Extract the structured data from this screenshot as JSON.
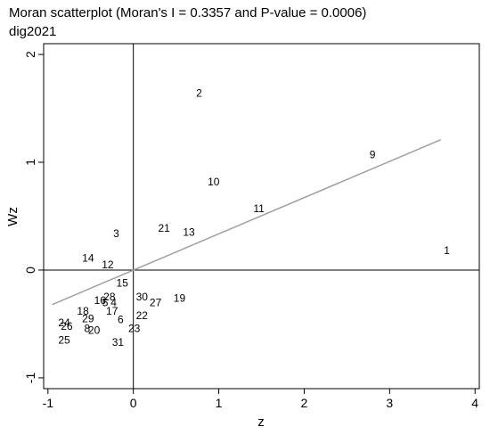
{
  "chart_data": {
    "type": "scatter",
    "title": "Moran scatterplot (Moran's I = 0.3357 and P-value = 0.0006)",
    "subtitle": "dig2021",
    "xlabel": "z",
    "ylabel": "Wz",
    "xlim": [
      -1.05,
      4.05
    ],
    "ylim": [
      -1.1,
      2.1
    ],
    "x_ticks": [
      -1,
      0,
      1,
      2,
      3,
      4
    ],
    "y_ticks": [
      -1,
      0,
      1,
      2
    ],
    "grid": false,
    "reference_lines": {
      "x": 0,
      "y": 0
    },
    "fit_line": {
      "x0": -0.95,
      "y0": -0.32,
      "x1": 3.6,
      "y1": 1.21,
      "color": "#a0a0a0"
    },
    "marker": "label",
    "points": [
      {
        "label": "1",
        "x": 3.67,
        "y": 0.18
      },
      {
        "label": "2",
        "x": 0.77,
        "y": 1.64
      },
      {
        "label": "3",
        "x": -0.2,
        "y": 0.34
      },
      {
        "label": "4",
        "x": -0.23,
        "y": -0.3
      },
      {
        "label": "5",
        "x": -0.33,
        "y": -0.3
      },
      {
        "label": "6",
        "x": -0.15,
        "y": -0.46
      },
      {
        "label": "8",
        "x": -0.54,
        "y": -0.54
      },
      {
        "label": "9",
        "x": 2.8,
        "y": 1.07
      },
      {
        "label": "10",
        "x": 0.94,
        "y": 0.82
      },
      {
        "label": "11",
        "x": 1.47,
        "y": 0.57
      },
      {
        "label": "12",
        "x": -0.3,
        "y": 0.05
      },
      {
        "label": "13",
        "x": 0.65,
        "y": 0.35
      },
      {
        "label": "14",
        "x": -0.53,
        "y": 0.11
      },
      {
        "label": "15",
        "x": -0.13,
        "y": -0.12
      },
      {
        "label": "16",
        "x": -0.39,
        "y": -0.28
      },
      {
        "label": "17",
        "x": -0.25,
        "y": -0.38
      },
      {
        "label": "18",
        "x": -0.59,
        "y": -0.38
      },
      {
        "label": "19",
        "x": 0.54,
        "y": -0.26
      },
      {
        "label": "20",
        "x": -0.46,
        "y": -0.56
      },
      {
        "label": "21",
        "x": 0.36,
        "y": 0.39
      },
      {
        "label": "22",
        "x": 0.1,
        "y": -0.42
      },
      {
        "label": "23",
        "x": 0.01,
        "y": -0.54
      },
      {
        "label": "24",
        "x": -0.81,
        "y": -0.49
      },
      {
        "label": "25",
        "x": -0.81,
        "y": -0.65
      },
      {
        "label": "26",
        "x": -0.78,
        "y": -0.52
      },
      {
        "label": "27",
        "x": 0.26,
        "y": -0.3
      },
      {
        "label": "28",
        "x": -0.28,
        "y": -0.25
      },
      {
        "label": "29",
        "x": -0.53,
        "y": -0.45
      },
      {
        "label": "30",
        "x": 0.1,
        "y": -0.25
      },
      {
        "label": "31",
        "x": -0.18,
        "y": -0.67
      }
    ]
  }
}
